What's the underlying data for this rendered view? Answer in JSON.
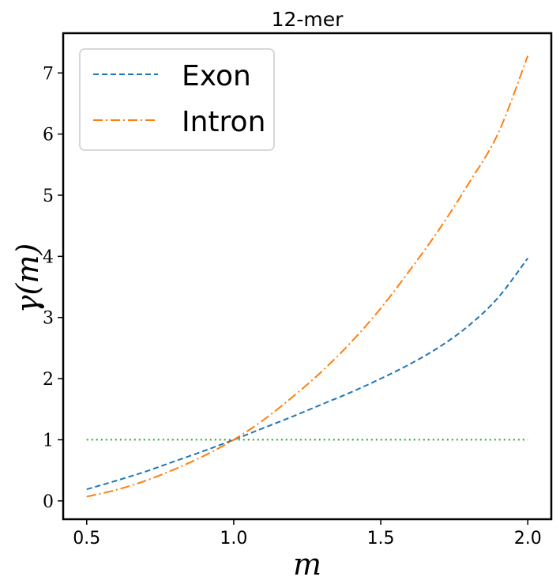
{
  "chart_data": {
    "type": "line",
    "title": "12-mer",
    "xlabel": "m",
    "ylabel": "γ(m)",
    "xlim": [
      0.42,
      2.08
    ],
    "ylim": [
      -0.3,
      7.65
    ],
    "xticks": [
      0.5,
      1.0,
      1.5,
      2.0
    ],
    "xtick_labels": [
      "0.5",
      "1.0",
      "1.5",
      "2.0"
    ],
    "yticks": [
      0,
      1,
      2,
      3,
      4,
      5,
      6,
      7
    ],
    "ytick_labels": [
      "0",
      "1",
      "2",
      "3",
      "4",
      "5",
      "6",
      "7"
    ],
    "grid": false,
    "legend_position": "top-left",
    "x": [
      0.5,
      0.6,
      0.7,
      0.8,
      0.9,
      1.0,
      1.1,
      1.2,
      1.3,
      1.4,
      1.5,
      1.6,
      1.7,
      1.8,
      1.9,
      2.0
    ],
    "series": [
      {
        "name": "Exon",
        "style": "dashed",
        "color": "#1f77b4",
        "values": [
          0.19,
          0.33,
          0.48,
          0.65,
          0.82,
          1.0,
          1.19,
          1.38,
          1.58,
          1.78,
          2.0,
          2.24,
          2.52,
          2.87,
          3.33,
          3.97
        ]
      },
      {
        "name": "Intron",
        "style": "dashdot",
        "color": "#ff7f0e",
        "values": [
          0.07,
          0.18,
          0.33,
          0.52,
          0.74,
          1.0,
          1.32,
          1.7,
          2.12,
          2.6,
          3.15,
          3.78,
          4.45,
          5.2,
          6.02,
          7.28
        ]
      },
      {
        "name": "",
        "style": "dotted",
        "color": "#2ca02c",
        "values": [
          1.0,
          1.0,
          1.0,
          1.0,
          1.0,
          1.0,
          1.0,
          1.0,
          1.0,
          1.0,
          1.0,
          1.0,
          1.0,
          1.0,
          1.0,
          1.0
        ]
      }
    ]
  }
}
